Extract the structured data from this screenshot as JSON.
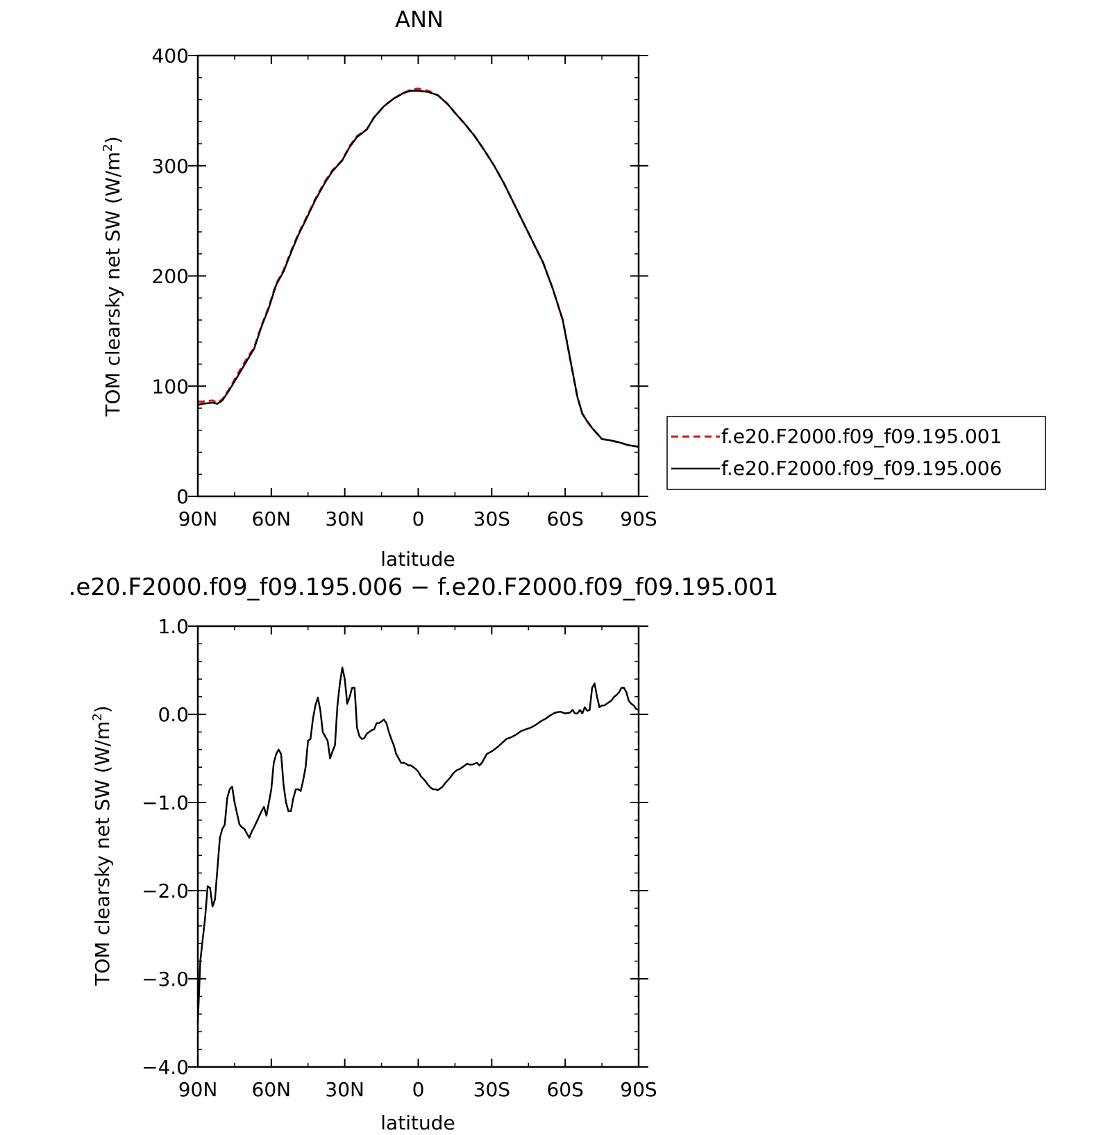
{
  "chart_data": [
    {
      "type": "line",
      "title": "ANN",
      "xlabel": "latitude",
      "ylabel": "TOM clearsky net SW (W/m",
      "ylabel_sup": "2",
      "ylabel_close": ")",
      "xlim": [
        90,
        -90
      ],
      "ylim": [
        0,
        400
      ],
      "x_tick_values": [
        90,
        60,
        30,
        0,
        -30,
        -60,
        -90
      ],
      "x_tick_labels": [
        "90N",
        "60N",
        "30N",
        "0",
        "30S",
        "60S",
        "90S"
      ],
      "y_tick_values": [
        0,
        100,
        200,
        300,
        400
      ],
      "y_tick_labels": [
        "0",
        "100",
        "200",
        "300",
        "400"
      ],
      "x": [
        90,
        88,
        84,
        82,
        80,
        77,
        74,
        70,
        67,
        64,
        61,
        58,
        55,
        52,
        49,
        45,
        42,
        38,
        35,
        31,
        28,
        25,
        21,
        18,
        14,
        10,
        6,
        3,
        0,
        -4,
        -8,
        -12,
        -15,
        -19,
        -23,
        -27,
        -31,
        -35,
        -39,
        -43,
        -47,
        -51,
        -55,
        -59,
        -62,
        -65,
        -67,
        -69,
        -71,
        -73,
        -75,
        -78,
        -80,
        -82,
        -85,
        -87,
        -90
      ],
      "series": [
        {
          "name": "f.e20.F2000.f09_f09.195.001",
          "color": "#e01010",
          "dash": "dashed",
          "values": [
            86,
            86,
            87,
            85,
            88,
            98,
            110,
            125,
            135,
            155,
            172,
            193,
            205,
            222,
            238,
            256,
            270,
            286,
            296,
            305,
            318,
            327,
            333,
            344,
            354,
            361,
            366,
            369,
            370,
            368,
            364,
            356,
            348,
            338,
            327,
            314,
            300,
            284,
            266,
            248,
            230,
            212,
            188,
            160,
            125,
            90,
            75,
            68,
            62,
            57,
            52,
            51,
            50,
            49,
            47,
            46,
            45
          ]
        },
        {
          "name": "f.e20.F2000.f09_f09.195.006",
          "color": "#000000",
          "dash": "solid",
          "values": [
            83,
            84,
            85,
            84,
            87,
            97,
            108,
            123,
            134,
            154,
            171,
            192,
            204,
            221,
            237,
            255,
            269,
            285,
            295,
            305,
            317,
            326,
            333,
            344,
            354,
            361,
            366,
            368,
            368,
            367,
            364,
            356,
            348,
            338,
            327,
            314,
            300,
            284,
            266,
            248,
            230,
            212,
            188,
            160,
            125,
            90,
            75,
            68,
            62,
            57,
            52,
            51,
            50,
            49,
            47,
            46,
            45
          ]
        }
      ],
      "legend": "right, outside plot"
    },
    {
      "type": "line",
      "title": ".e20.F2000.f09_f09.195.006 − f.e20.F2000.f09_f09.195.001",
      "xlabel": "latitude",
      "ylabel": "TOM clearsky net SW (W/m",
      "ylabel_sup": "2",
      "ylabel_close": ")",
      "xlim": [
        90,
        -90
      ],
      "ylim": [
        -4.0,
        1.0
      ],
      "x_tick_values": [
        90,
        60,
        30,
        0,
        -30,
        -60,
        -90
      ],
      "x_tick_labels": [
        "90N",
        "60N",
        "30N",
        "0",
        "30S",
        "60S",
        "90S"
      ],
      "y_tick_values": [
        -4,
        -3,
        -2,
        -1,
        0,
        1
      ],
      "y_tick_labels": [
        "−4.0",
        "−3.0",
        "−2.0",
        "−1.0",
        "0.0",
        "1.0"
      ],
      "x": [
        90,
        89,
        87,
        86,
        85,
        84,
        83,
        81,
        80,
        79,
        78,
        77,
        76,
        75,
        73,
        72,
        71,
        69,
        68,
        67,
        66,
        64,
        63,
        62,
        61,
        60,
        59,
        58,
        57,
        56,
        55,
        54,
        53,
        52,
        51,
        50,
        49,
        48,
        47,
        46,
        45,
        44,
        43,
        42,
        41,
        40,
        39,
        38,
        37,
        36,
        35,
        34,
        33,
        32,
        31,
        30,
        29,
        28,
        27,
        26,
        25,
        24,
        23,
        22,
        21,
        20,
        19,
        18,
        17,
        16,
        15,
        14,
        13,
        12,
        11,
        10,
        9,
        8,
        7,
        6,
        5,
        4,
        3,
        2,
        1,
        0,
        -1,
        -2,
        -3,
        -4,
        -5,
        -6,
        -7,
        -8,
        -9,
        -10,
        -11,
        -12,
        -13,
        -14,
        -15,
        -16,
        -17,
        -18,
        -19,
        -20,
        -21,
        -22,
        -23,
        -24,
        -25,
        -26,
        -28,
        -30,
        -32,
        -34,
        -36,
        -38,
        -40,
        -42,
        -44,
        -46,
        -48,
        -50,
        -52,
        -54,
        -56,
        -58,
        -60,
        -62,
        -63,
        -64,
        -65,
        -66,
        -67,
        -68,
        -69,
        -70,
        -71,
        -72,
        -73,
        -74,
        -75,
        -76,
        -77,
        -78,
        -79,
        -80,
        -81,
        -82,
        -83,
        -84,
        -85,
        -86,
        -87,
        -88,
        -89,
        -90
      ],
      "series": [
        {
          "name": "",
          "color": "#000000",
          "dash": "solid",
          "values": [
            -3.5,
            -2.8,
            -2.3,
            -1.95,
            -1.97,
            -2.18,
            -2.1,
            -1.4,
            -1.3,
            -1.25,
            -0.95,
            -0.85,
            -0.82,
            -1.0,
            -1.25,
            -1.28,
            -1.3,
            -1.4,
            -1.33,
            -1.28,
            -1.22,
            -1.1,
            -1.05,
            -1.15,
            -1.0,
            -0.85,
            -0.55,
            -0.45,
            -0.4,
            -0.45,
            -0.8,
            -1.0,
            -1.1,
            -1.1,
            -0.95,
            -0.85,
            -0.85,
            -0.87,
            -0.75,
            -0.6,
            -0.3,
            -0.28,
            -0.05,
            0.1,
            0.19,
            0.05,
            -0.2,
            -0.25,
            -0.3,
            -0.5,
            -0.42,
            -0.35,
            0.1,
            0.35,
            0.53,
            0.4,
            0.12,
            0.2,
            0.3,
            0.3,
            -0.15,
            -0.25,
            -0.28,
            -0.27,
            -0.22,
            -0.2,
            -0.18,
            -0.17,
            -0.1,
            -0.1,
            -0.08,
            -0.06,
            -0.1,
            -0.2,
            -0.28,
            -0.35,
            -0.45,
            -0.5,
            -0.55,
            -0.55,
            -0.56,
            -0.58,
            -0.58,
            -0.6,
            -0.62,
            -0.65,
            -0.7,
            -0.73,
            -0.76,
            -0.8,
            -0.83,
            -0.85,
            -0.85,
            -0.86,
            -0.84,
            -0.82,
            -0.78,
            -0.75,
            -0.72,
            -0.68,
            -0.65,
            -0.63,
            -0.62,
            -0.6,
            -0.58,
            -0.56,
            -0.57,
            -0.57,
            -0.56,
            -0.55,
            -0.58,
            -0.55,
            -0.45,
            -0.42,
            -0.38,
            -0.33,
            -0.28,
            -0.26,
            -0.23,
            -0.19,
            -0.17,
            -0.15,
            -0.12,
            -0.08,
            -0.05,
            -0.01,
            0.02,
            0.03,
            0.01,
            0.02,
            0.05,
            0.01,
            0.01,
            0.05,
            0.01,
            0.08,
            0.04,
            0.05,
            0.3,
            0.35,
            0.2,
            0.08,
            0.1,
            0.1,
            0.12,
            0.14,
            0.16,
            0.2,
            0.22,
            0.25,
            0.3,
            0.3,
            0.25,
            0.15,
            0.12,
            0.1,
            0.06,
            0.05
          ]
        }
      ]
    }
  ]
}
